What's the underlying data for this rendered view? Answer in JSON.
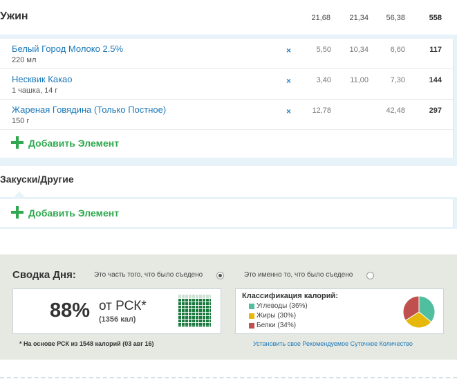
{
  "dinner": {
    "title": "Ужин",
    "totals": [
      "21,68",
      "21,34",
      "56,38",
      "558"
    ],
    "items": [
      {
        "name": "Белый Город Молоко 2.5%",
        "qty": "220 мл",
        "remove": "×",
        "v1": "5,50",
        "v2": "10,34",
        "v3": "6,60",
        "cal": "117"
      },
      {
        "name": "Несквик Какао",
        "qty": "1 чашка, 14 г",
        "remove": "×",
        "v1": "3,40",
        "v2": "11,00",
        "v3": "7,30",
        "cal": "144"
      },
      {
        "name": "Жареная Говядина (Только Постное)",
        "qty": "150 г",
        "remove": "×",
        "v1": "12,78",
        "v2": "",
        "v3": "42,48",
        "cal": "297"
      }
    ],
    "add_label": "Добавить Элемент"
  },
  "snacks": {
    "title": "Закуски/Другие",
    "add_label": "Добавить Элемент"
  },
  "summary": {
    "title": "Сводка Дня:",
    "option_eaten_share": "Это часть того, что было съедено",
    "option_eaten_exact": "Это именно то, что было съедено",
    "selected_option": "option_eaten_share",
    "pct": "88%",
    "of_rsk": "от РСК*",
    "kcal": "(1356 кал)",
    "grid_fill_fraction": 0.88,
    "classification_title": "Классификация калорий:",
    "legend": [
      {
        "label": "Углеводы (36%)",
        "color": "#4fbf9f",
        "pct": 36
      },
      {
        "label": "Жиры (30%)",
        "color": "#e6b80b",
        "pct": 30
      },
      {
        "label": "Белки (34%)",
        "color": "#c0504d",
        "pct": 34
      }
    ],
    "footnote": "* На основе РСК из 1548 калорий (03 авг 16)",
    "link": "Установить свое Рекомендуемое Суточное Количество"
  }
}
